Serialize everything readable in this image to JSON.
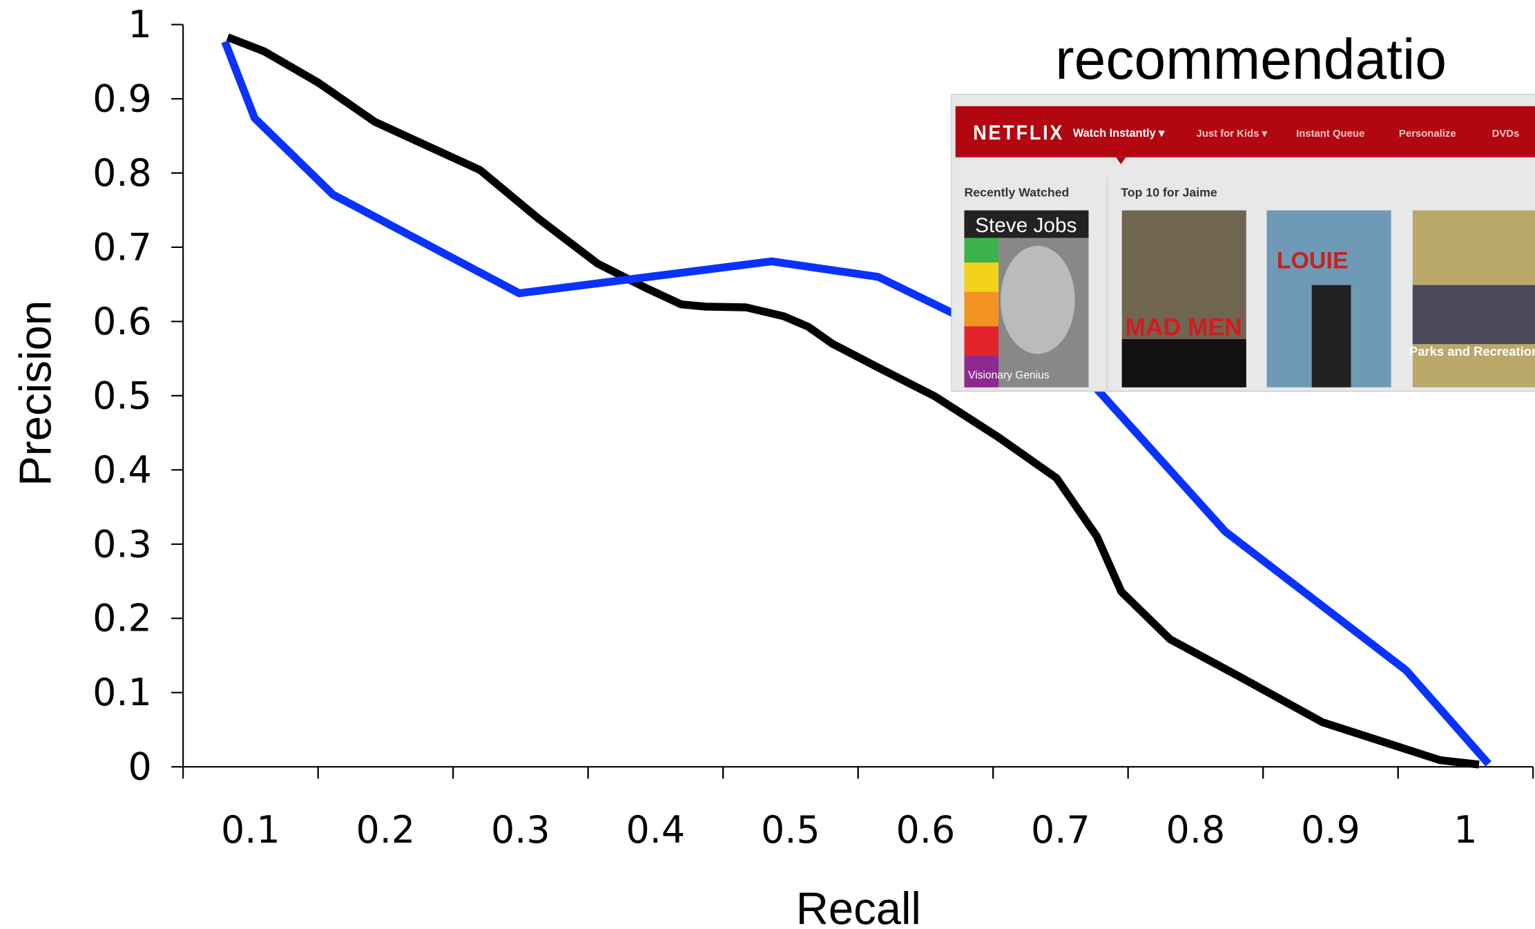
{
  "chart_data": {
    "type": "line",
    "title": "recommendatio",
    "x_label": "Recall",
    "y_label": "Precision",
    "xlim": [
      0.05,
      1.05
    ],
    "ylim": [
      0,
      1
    ],
    "xticks": [
      0.1,
      0.2,
      0.3,
      0.4,
      0.5,
      0.6,
      0.7,
      0.8,
      0.9,
      1
    ],
    "yticks": [
      0,
      0.1,
      0.2,
      0.3,
      0.4,
      0.5,
      0.6,
      0.7,
      0.8,
      0.9,
      1
    ],
    "grid": false,
    "series": [
      {
        "color": "#000000",
        "x": [
          0.083,
          0.11,
          0.15,
          0.192,
          0.27,
          0.313,
          0.357,
          0.393,
          0.419,
          0.437,
          0.467,
          0.495,
          0.513,
          0.531,
          0.567,
          0.607,
          0.654,
          0.697,
          0.727,
          0.745,
          0.781,
          0.832,
          0.894,
          0.981,
          1.01
        ],
        "values": [
          0.983,
          0.964,
          0.922,
          0.869,
          0.804,
          0.739,
          0.678,
          0.645,
          0.623,
          0.62,
          0.619,
          0.607,
          0.593,
          0.57,
          0.536,
          0.499,
          0.444,
          0.389,
          0.31,
          0.236,
          0.172,
          0.122,
          0.06,
          0.009,
          0.003
        ]
      },
      {
        "color": "#0a32ff",
        "x": [
          0.081,
          0.103,
          0.161,
          0.299,
          0.486,
          0.565,
          0.72,
          0.822,
          0.956,
          1.017
        ],
        "values": [
          0.977,
          0.874,
          0.771,
          0.638,
          0.681,
          0.66,
          0.523,
          0.317,
          0.13,
          0.004
        ]
      }
    ]
  },
  "inset": {
    "logo": "NETFLIX",
    "nav": [
      "Watch Instantly ▾",
      "Just for Kids ▾",
      "Instant Queue",
      "Personalize",
      "DVDs"
    ],
    "sections": [
      "Recently Watched",
      "Top 10 for Jaime"
    ],
    "posters": [
      "Steve Jobs",
      "Visionary Genius",
      "MAD MEN",
      "LOUIE",
      "Parks and Recreation"
    ]
  }
}
